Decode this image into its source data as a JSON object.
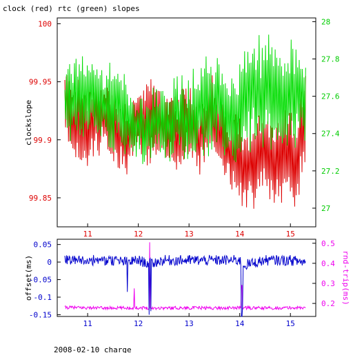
{
  "chart_data": [
    {
      "type": "line",
      "title": "clock (red) rtc (green) slopes",
      "xlabel": "",
      "ylabel": "clockslope",
      "xlim": [
        10.4,
        15.5
      ],
      "ylim": [
        99.825,
        100.005
      ],
      "y2lim": [
        26.9,
        28.02
      ],
      "x_ticks": [
        11,
        12,
        13,
        14,
        15
      ],
      "y_ticks": [
        99.85,
        99.9,
        99.95,
        100
      ],
      "y_tick_labels": [
        "99.85",
        "99.9",
        "99.95",
        "100"
      ],
      "y2_ticks": [
        27,
        27.2,
        27.4,
        27.6,
        27.8,
        28
      ],
      "y2_tick_labels": [
        "27",
        "27.2",
        "27.4",
        "27.6",
        "27.8",
        "28"
      ],
      "series": [
        {
          "name": "clock",
          "color": "#dd0000",
          "axis": "left",
          "x": [
            10.55,
            10.75,
            11.0,
            11.3,
            11.5,
            11.8,
            12.0,
            12.2,
            12.35,
            12.55,
            12.75,
            13.0,
            13.2,
            13.4,
            13.55,
            13.75,
            13.95,
            14.05,
            14.3,
            14.5,
            14.7,
            14.9,
            15.1,
            15.3
          ],
          "y": [
            99.93,
            99.92,
            99.91,
            99.92,
            99.91,
            99.9,
            99.92,
            99.91,
            99.92,
            99.91,
            99.9,
            99.92,
            99.9,
            99.92,
            99.91,
            99.89,
            99.89,
            99.88,
            99.88,
            99.89,
            99.88,
            99.89,
            99.88,
            99.92
          ],
          "amplitude": [
            0.03,
            0.035,
            0.035,
            0.03,
            0.035,
            0.03,
            0.025,
            0.04,
            0.035,
            0.03,
            0.035,
            0.03,
            0.03,
            0.04,
            0.035,
            0.03,
            0.035,
            0.035,
            0.04,
            0.035,
            0.04,
            0.035,
            0.04,
            0.035
          ]
        },
        {
          "name": "rtc",
          "color": "#00dd00",
          "axis": "right",
          "x": [
            10.55,
            10.75,
            11.0,
            11.3,
            11.5,
            11.8,
            12.0,
            12.2,
            12.35,
            12.55,
            12.75,
            13.0,
            13.2,
            13.4,
            13.55,
            13.75,
            13.95,
            14.05,
            14.3,
            14.5,
            14.7,
            14.9,
            15.1,
            15.3
          ],
          "y": [
            27.55,
            27.6,
            27.58,
            27.55,
            27.55,
            27.45,
            27.42,
            27.4,
            27.45,
            27.45,
            27.5,
            27.45,
            27.55,
            27.55,
            27.6,
            27.5,
            27.45,
            27.6,
            27.65,
            27.6,
            27.6,
            27.6,
            27.6,
            27.55
          ],
          "amplitude": [
            0.2,
            0.25,
            0.25,
            0.2,
            0.25,
            0.2,
            0.15,
            0.2,
            0.2,
            0.2,
            0.2,
            0.25,
            0.25,
            0.25,
            0.25,
            0.25,
            0.25,
            0.3,
            0.3,
            0.3,
            0.3,
            0.3,
            0.3,
            0.25
          ]
        }
      ],
      "grid": false
    },
    {
      "type": "line",
      "title": "",
      "xlabel": "2008-02-10 charge",
      "ylabel": "offset(ms)",
      "y2label": "rnd-trip(ms)",
      "xlim": [
        10.4,
        15.5
      ],
      "ylim": [
        -0.155,
        0.065
      ],
      "y2lim": [
        0.135,
        0.52
      ],
      "x_ticks": [
        11,
        12,
        13,
        14,
        15
      ],
      "y_ticks": [
        -0.15,
        -0.1,
        -0.05,
        0,
        0.05
      ],
      "y_tick_labels": [
        "-0.15",
        "-0.1",
        "-0.05",
        "0",
        "0.05"
      ],
      "y2_ticks": [
        0.2,
        0.3,
        0.4,
        0.5
      ],
      "y2_tick_labels": [
        "0.2",
        "0.3",
        "0.4",
        "0.5"
      ],
      "series": [
        {
          "name": "offset",
          "color": "#0000cc",
          "axis": "left",
          "x": [
            10.55,
            11.0,
            11.5,
            11.75,
            12.0,
            12.22,
            12.5,
            13.0,
            13.5,
            14.0,
            14.05,
            14.5,
            15.0,
            15.3
          ],
          "y": [
            0.005,
            0.005,
            0.005,
            0.0,
            0.005,
            -0.005,
            0.005,
            0.005,
            0.005,
            0.005,
            -0.01,
            0.005,
            0.005,
            0.0
          ],
          "amplitude": 0.015,
          "spikes": [
            {
              "x": 11.78,
              "y": -0.085
            },
            {
              "x": 12.21,
              "y": -0.15
            },
            {
              "x": 12.25,
              "y": -0.14
            },
            {
              "x": 14.04,
              "y": -0.155
            },
            {
              "x": 14.06,
              "y": -0.13
            }
          ]
        },
        {
          "name": "rnd-trip",
          "color": "#ee00ee",
          "axis": "right",
          "x": [
            10.55,
            11.0,
            11.5,
            12.0,
            12.5,
            13.0,
            13.5,
            14.0,
            14.5,
            15.0,
            15.3
          ],
          "y": [
            0.18,
            0.178,
            0.177,
            0.178,
            0.177,
            0.178,
            0.177,
            0.178,
            0.177,
            0.178,
            0.178
          ],
          "amplitude": 0.008,
          "spikes": [
            {
              "x": 11.92,
              "y": 0.275
            },
            {
              "x": 12.22,
              "y": 0.505
            },
            {
              "x": 14.04,
              "y": 0.29
            }
          ]
        }
      ],
      "grid": false
    }
  ]
}
